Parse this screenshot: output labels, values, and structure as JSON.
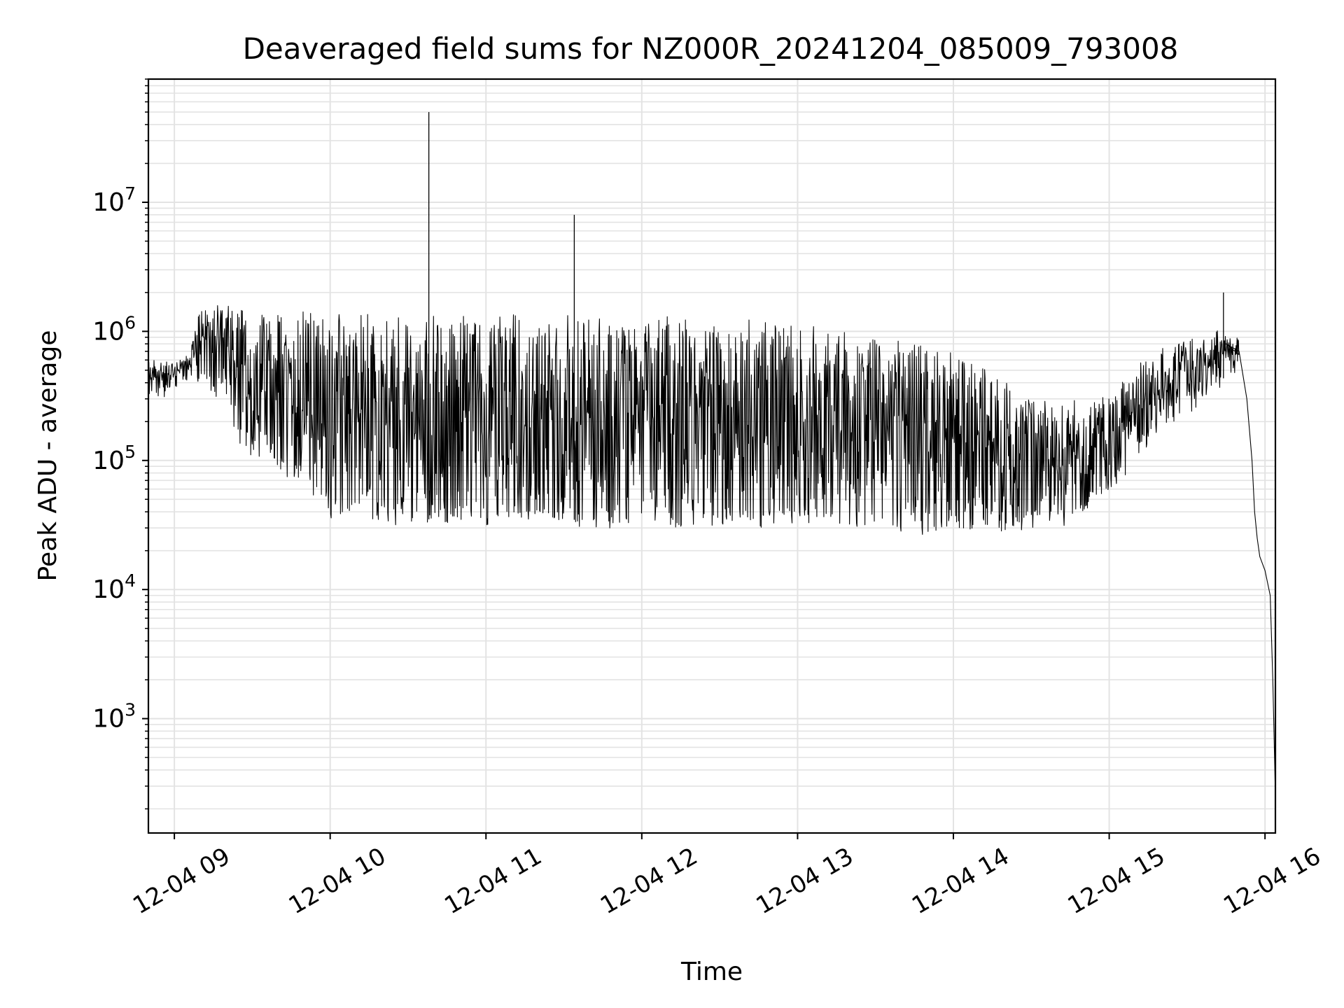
{
  "chart_data": {
    "type": "line",
    "title": "Deaveraged field sums for NZ000R_20241204_085009_793008",
    "xlabel": "Time",
    "ylabel": "Peak ADU - average",
    "y_scale": "log",
    "grid": true,
    "legend": "none",
    "line_color": "#000000",
    "grid_color": "#e3e3e3",
    "xlim": [
      "2024-12-04 08:50",
      "2024-12-04 16:04"
    ],
    "ylim": [
      130,
      90000000
    ],
    "x_ticks": [
      "12-04 09",
      "12-04 10",
      "12-04 11",
      "12-04 12",
      "12-04 13",
      "12-04 14",
      "12-04 15",
      "12-04 16"
    ],
    "y_ticks": [
      {
        "value": 1000,
        "base": "10",
        "exp": "3"
      },
      {
        "value": 10000,
        "base": "10",
        "exp": "4"
      },
      {
        "value": 100000,
        "base": "10",
        "exp": "5"
      },
      {
        "value": 1000000,
        "base": "10",
        "exp": "6"
      },
      {
        "value": 10000000,
        "base": "10",
        "exp": "7"
      }
    ],
    "series": [
      {
        "envelope_upper": [
          [
            "2024-12-04 08:50",
            550000
          ],
          [
            "2024-12-04 09:00",
            600000
          ],
          [
            "2024-12-04 09:05",
            600000
          ],
          [
            "2024-12-04 09:10",
            1400000
          ],
          [
            "2024-12-04 09:20",
            1600000
          ],
          [
            "2024-12-04 09:35",
            1400000
          ],
          [
            "2024-12-04 09:50",
            1500000
          ],
          [
            "2024-12-04 10:00",
            1300000
          ],
          [
            "2024-12-04 10:30",
            1300000
          ],
          [
            "2024-12-04 11:00",
            1250000
          ],
          [
            "2024-12-04 11:30",
            1200000
          ],
          [
            "2024-12-04 12:00",
            1200000
          ],
          [
            "2024-12-04 12:30",
            1200000
          ],
          [
            "2024-12-04 13:00",
            1100000
          ],
          [
            "2024-12-04 13:20",
            1000000
          ],
          [
            "2024-12-04 13:40",
            800000
          ],
          [
            "2024-12-04 14:00",
            700000
          ],
          [
            "2024-12-04 14:20",
            400000
          ],
          [
            "2024-12-04 14:40",
            250000
          ],
          [
            "2024-12-04 15:00",
            300000
          ],
          [
            "2024-12-04 15:15",
            600000
          ],
          [
            "2024-12-04 15:30",
            900000
          ],
          [
            "2024-12-04 15:45",
            1000000
          ],
          [
            "2024-12-04 15:50",
            800000
          ]
        ],
        "envelope_lower": [
          [
            "2024-12-04 08:50",
            300000
          ],
          [
            "2024-12-04 09:00",
            380000
          ],
          [
            "2024-12-04 09:05",
            380000
          ],
          [
            "2024-12-04 09:10",
            200000
          ],
          [
            "2024-12-04 09:20",
            150000
          ],
          [
            "2024-12-04 09:35",
            110000
          ],
          [
            "2024-12-04 09:50",
            70000
          ],
          [
            "2024-12-04 10:00",
            40000
          ],
          [
            "2024-12-04 10:30",
            35000
          ],
          [
            "2024-12-04 11:00",
            35000
          ],
          [
            "2024-12-04 11:30",
            35000
          ],
          [
            "2024-12-04 12:00",
            33000
          ],
          [
            "2024-12-04 12:30",
            34000
          ],
          [
            "2024-12-04 13:00",
            34000
          ],
          [
            "2024-12-04 13:20",
            34000
          ],
          [
            "2024-12-04 13:40",
            30000
          ],
          [
            "2024-12-04 14:00",
            30000
          ],
          [
            "2024-12-04 14:20",
            30000
          ],
          [
            "2024-12-04 14:40",
            32000
          ],
          [
            "2024-12-04 15:00",
            60000
          ],
          [
            "2024-12-04 15:15",
            150000
          ],
          [
            "2024-12-04 15:30",
            250000
          ],
          [
            "2024-12-04 15:45",
            450000
          ],
          [
            "2024-12-04 15:50",
            500000
          ]
        ],
        "tail": [
          [
            "2024-12-04 15:45",
            800000
          ],
          [
            "2024-12-04 15:50",
            700000
          ],
          [
            "2024-12-04 15:53",
            300000
          ],
          [
            "2024-12-04 15:55",
            100000
          ],
          [
            "2024-12-04 15:56",
            40000
          ],
          [
            "2024-12-04 15:57",
            25000
          ],
          [
            "2024-12-04 15:58",
            18000
          ],
          [
            "2024-12-04 16:00",
            14000
          ],
          [
            "2024-12-04 16:02",
            9000
          ],
          [
            "2024-12-04 16:03",
            2000
          ],
          [
            "2024-12-04 16:04",
            250
          ]
        ],
        "spikes": [
          [
            "2024-12-04 10:38",
            50000000
          ],
          [
            "2024-12-04 11:34",
            8000000
          ],
          [
            "2024-12-04 15:44",
            2000000
          ]
        ]
      }
    ]
  }
}
